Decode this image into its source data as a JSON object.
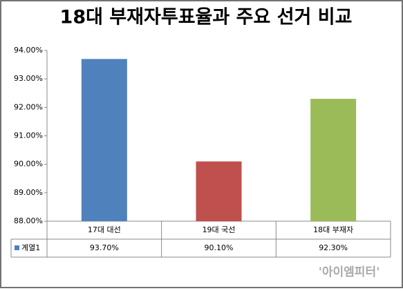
{
  "chart_data": {
    "type": "bar",
    "title": "18대 부재자투표율과 주요 선거 비교",
    "categories": [
      "17대 대선",
      "19대 국선",
      "18대 부재자"
    ],
    "series": [
      {
        "name": "계열1",
        "color": "#4f81bd",
        "point_colors": [
          "#4f81bd",
          "#c0504d",
          "#9bbb59"
        ],
        "values": [
          93.7,
          90.1,
          92.3
        ],
        "value_labels": [
          "93.70%",
          "90.10%",
          "92.30%"
        ]
      }
    ],
    "ylim": [
      88,
      94
    ],
    "yticks": [
      {
        "value": 88,
        "label": "88.00%"
      },
      {
        "value": 89,
        "label": "89.00%"
      },
      {
        "value": 90,
        "label": "90.00%"
      },
      {
        "value": 91,
        "label": "91.00%"
      },
      {
        "value": 92,
        "label": "92.00%"
      },
      {
        "value": 93,
        "label": "93.00%"
      },
      {
        "value": 94,
        "label": "94.00%"
      }
    ],
    "grid": false,
    "watermark": "'아이엠피터'"
  }
}
